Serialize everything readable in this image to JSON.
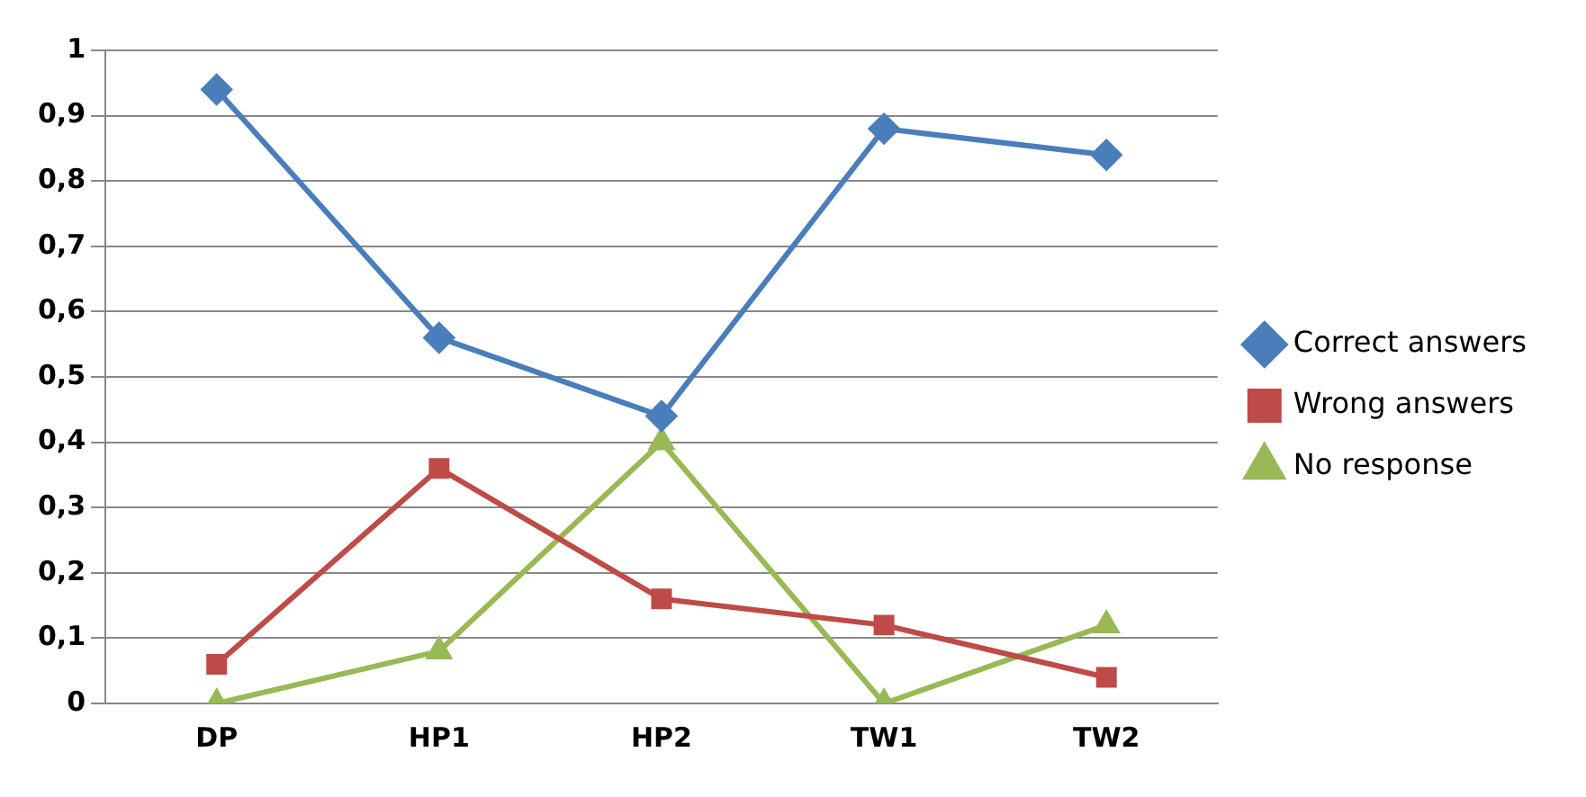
{
  "chart_data": {
    "type": "line",
    "categories": [
      "DP",
      "HP1",
      "HP2",
      "TW1",
      "TW2"
    ],
    "series": [
      {
        "name": "Correct answers",
        "color": "#4a7ebb",
        "marker": "diamond",
        "values": [
          0.94,
          0.56,
          0.44,
          0.88,
          0.84
        ]
      },
      {
        "name": "Wrong answers",
        "color": "#be4b48",
        "marker": "square",
        "values": [
          0.06,
          0.36,
          0.16,
          0.12,
          0.04
        ]
      },
      {
        "name": "No response",
        "color": "#98b954",
        "marker": "triangle",
        "values": [
          0,
          0.08,
          0.4,
          0,
          0.12
        ]
      }
    ],
    "ylim": [
      0,
      1
    ],
    "yticks": [
      0,
      {
        "value": 0.1,
        "label": "0,1"
      },
      {
        "value": 0.2,
        "label": "0,2"
      },
      {
        "value": 0.3,
        "label": "0,3"
      },
      {
        "value": 0.4,
        "label": "0,4"
      },
      {
        "value": 0.5,
        "label": "0,5"
      },
      {
        "value": 0.6,
        "label": "0,6"
      },
      {
        "value": 0.7,
        "label": "0,7"
      },
      {
        "value": 0.8,
        "label": "0,8"
      },
      {
        "value": 0.9,
        "label": "0,9"
      },
      1
    ],
    "grid": "y",
    "legend": "right"
  }
}
